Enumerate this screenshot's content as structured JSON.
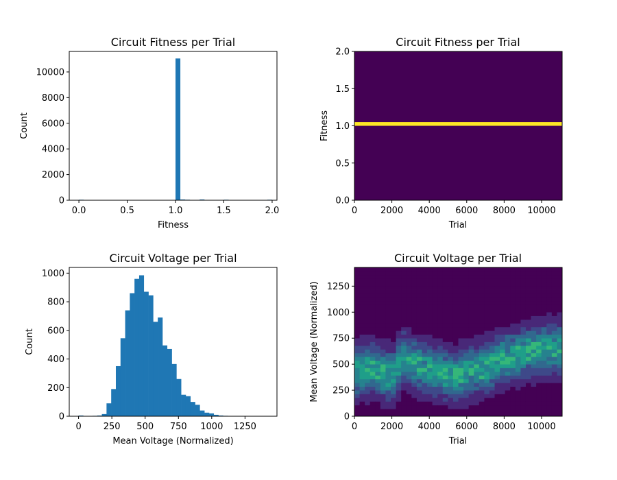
{
  "chart_data": [
    {
      "id": "fitness_hist",
      "type": "bar",
      "title": "Circuit Fitness per Trial",
      "xlabel": "Fitness",
      "ylabel": "Count",
      "xlim": [
        -0.1,
        2.05
      ],
      "ylim": [
        0,
        11600
      ],
      "xticks": [
        0.0,
        0.5,
        1.0,
        1.5,
        2.0
      ],
      "xtick_labels": [
        "0.0",
        "0.5",
        "1.0",
        "1.5",
        "2.0"
      ],
      "yticks": [
        0,
        2000,
        4000,
        6000,
        8000,
        10000
      ],
      "ytick_labels": [
        "0",
        "2000",
        "4000",
        "6000",
        "8000",
        "10000"
      ],
      "bin_width": 0.05,
      "bins": [
        {
          "x0": 0.0,
          "count": 40
        },
        {
          "x0": 1.0,
          "count": 11050
        },
        {
          "x0": 1.05,
          "count": 60
        },
        {
          "x0": 1.1,
          "count": 40
        },
        {
          "x0": 1.25,
          "count": 60
        },
        {
          "x0": 1.5,
          "count": 40
        },
        {
          "x0": 1.95,
          "count": 40
        }
      ],
      "color": "#1f77b4"
    },
    {
      "id": "fitness_2d",
      "type": "heatmap",
      "title": "Circuit Fitness per Trial",
      "xlabel": "Trial",
      "ylabel": "Fitness",
      "xlim": [
        0,
        11100
      ],
      "ylim": [
        0,
        2
      ],
      "xticks": [
        0,
        2000,
        4000,
        6000,
        8000,
        10000
      ],
      "xtick_labels": [
        "0",
        "2000",
        "4000",
        "6000",
        "8000",
        "10000"
      ],
      "yticks": [
        0,
        0.5,
        1.0,
        1.5,
        2.0
      ],
      "ytick_labels": [
        "0.0",
        "0.5",
        "1.0",
        "1.5",
        "2.0"
      ],
      "band": {
        "y0": 1.0,
        "y1": 1.05,
        "color": "#fde725"
      },
      "background_color": "#440154"
    },
    {
      "id": "voltage_hist",
      "type": "bar",
      "title": "Circuit Voltage per Trial",
      "xlabel": "Mean Voltage (Normalized)",
      "ylabel": "Count",
      "xlim": [
        -70,
        1490
      ],
      "ylim": [
        0,
        1040
      ],
      "xticks": [
        0,
        250,
        500,
        750,
        1000,
        1250
      ],
      "xtick_labels": [
        "0",
        "250",
        "500",
        "750",
        "1000",
        "1250"
      ],
      "yticks": [
        0,
        200,
        400,
        600,
        800,
        1000
      ],
      "ytick_labels": [
        "0",
        "200",
        "400",
        "600",
        "800",
        "1000"
      ],
      "bin_width": 35,
      "bin_start": 0,
      "counts": [
        5,
        0,
        1,
        3,
        5,
        15,
        90,
        190,
        350,
        545,
        740,
        860,
        960,
        985,
        870,
        845,
        660,
        690,
        495,
        470,
        365,
        260,
        150,
        140,
        100,
        80,
        40,
        25,
        20,
        10,
        5,
        3,
        2,
        2,
        1,
        1,
        1,
        0,
        0,
        0,
        0
      ],
      "color": "#1f77b4"
    },
    {
      "id": "voltage_2d",
      "type": "heatmap",
      "title": "Circuit Voltage per Trial",
      "xlabel": "Trial",
      "ylabel": "Mean Voltage (Normalized)",
      "xlim": [
        0,
        11100
      ],
      "ylim": [
        0,
        1430
      ],
      "xticks": [
        0,
        2000,
        4000,
        6000,
        8000,
        10000
      ],
      "xtick_labels": [
        "0",
        "2000",
        "4000",
        "6000",
        "8000",
        "10000"
      ],
      "yticks": [
        0,
        250,
        500,
        750,
        1000,
        1250
      ],
      "ytick_labels": [
        "0",
        "250",
        "500",
        "750",
        "1000",
        "1250"
      ],
      "x_bins": 40,
      "y_bins": 40,
      "mean_trend": [
        [
          0,
          420
        ],
        [
          1000,
          470
        ],
        [
          2000,
          380
        ],
        [
          2600,
          560
        ],
        [
          3200,
          500
        ],
        [
          4000,
          450
        ],
        [
          4600,
          430
        ],
        [
          5300,
          380
        ],
        [
          6000,
          420
        ],
        [
          7000,
          470
        ],
        [
          8000,
          560
        ],
        [
          9000,
          610
        ],
        [
          10000,
          650
        ],
        [
          11100,
          660
        ]
      ],
      "spread": 150,
      "colormap": [
        "#440154",
        "#482878",
        "#3e4989",
        "#31688e",
        "#26828e",
        "#1f9e89",
        "#35b779",
        "#6ece58",
        "#b5de2b",
        "#fde725"
      ]
    }
  ]
}
